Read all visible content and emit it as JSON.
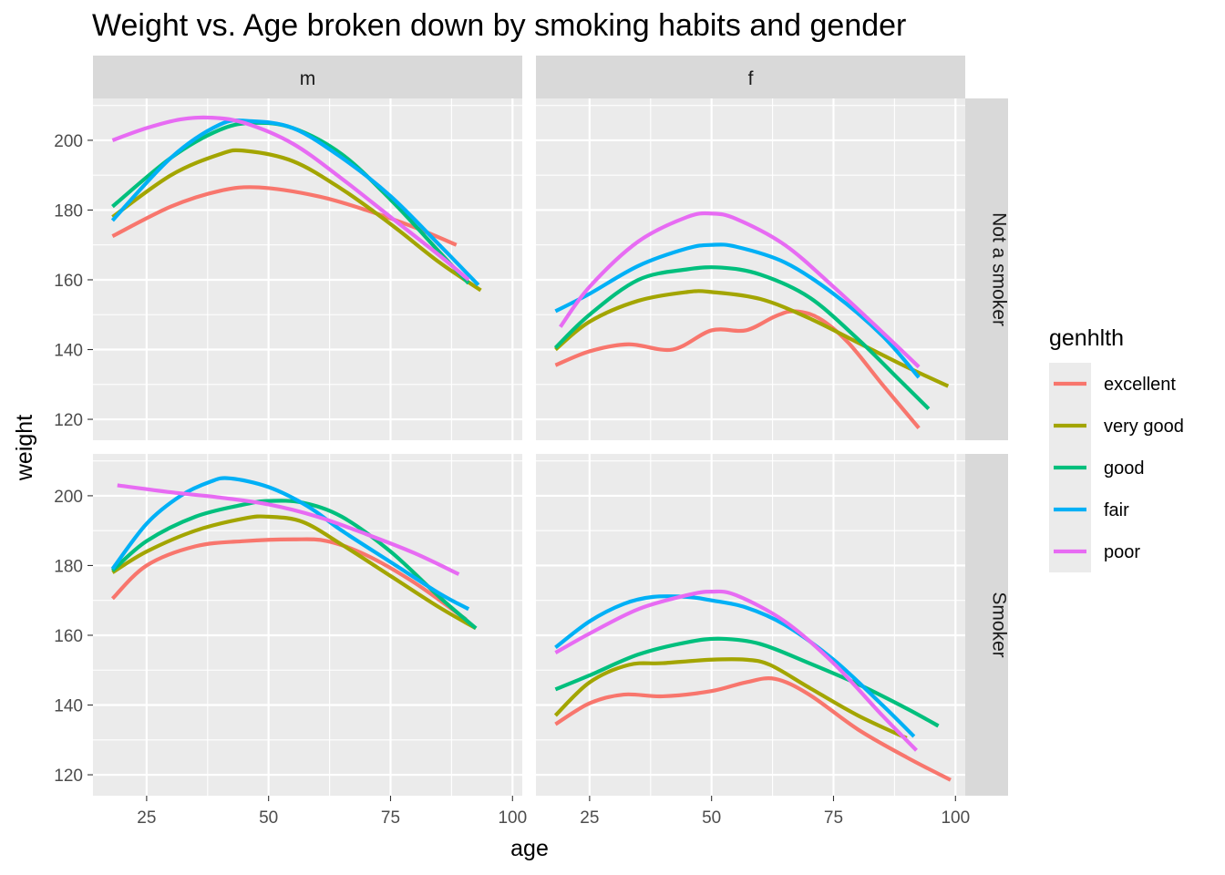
{
  "chart_data": {
    "type": "line",
    "title": "Weight vs. Age broken down by smoking habits and gender",
    "xlabel": "age",
    "ylabel": "weight",
    "xlim": [
      14,
      102
    ],
    "ylim": [
      114,
      212
    ],
    "x_ticks": [
      25,
      50,
      75,
      100
    ],
    "y_ticks": [
      120,
      140,
      160,
      180,
      200
    ],
    "grid": true,
    "facet_columns": [
      "m",
      "f"
    ],
    "facet_rows": [
      "Not a smoker",
      "Smoker"
    ],
    "legend": {
      "title": "genhlth",
      "placement": "right",
      "entries": [
        {
          "name": "excellent",
          "color": "#F8766D"
        },
        {
          "name": "very good",
          "color": "#A3A500"
        },
        {
          "name": "good",
          "color": "#00BF7D"
        },
        {
          "name": "fair",
          "color": "#00B0F6"
        },
        {
          "name": "poor",
          "color": "#E76BF3"
        }
      ]
    },
    "panels": [
      {
        "col": "m",
        "row": "Not a smoker",
        "series": [
          {
            "name": "excellent",
            "x": [
              18,
              30,
              40,
              48,
              60,
              70,
              80,
              88.5
            ],
            "y": [
              172.5,
              181,
              185.5,
              186.5,
              184,
              180,
              175,
              170
            ]
          },
          {
            "name": "very good",
            "x": [
              18,
              30,
              40,
              45,
              55,
              65,
              75,
              85,
              93.5
            ],
            "y": [
              178,
              190,
              196,
              197,
              194,
              186,
              176,
              165,
              157
            ]
          },
          {
            "name": "good",
            "x": [
              18,
              30,
              40,
              47,
              55,
              65,
              75,
              85,
              91
            ],
            "y": [
              181,
              195,
              203,
              205,
              203.5,
              196,
              183,
              168,
              159
            ]
          },
          {
            "name": "fair",
            "x": [
              18,
              30,
              40,
              46,
              55,
              65,
              75,
              85,
              93
            ],
            "y": [
              177,
              195,
              204.5,
              205.5,
              203.5,
              195,
              184,
              170,
              158.5
            ]
          },
          {
            "name": "poor",
            "x": [
              18,
              25,
              32,
              38,
              45,
              55,
              65,
              75,
              85,
              91
            ],
            "y": [
              200,
              203.5,
              206,
              206.5,
              205,
              199,
              189,
              178,
              167,
              160
            ]
          }
        ]
      },
      {
        "col": "f",
        "row": "Not a smoker",
        "series": [
          {
            "name": "excellent",
            "x": [
              18,
              25,
              33,
              42,
              50,
              57,
              63,
              67,
              72,
              78,
              85,
              92.5
            ],
            "y": [
              135.5,
              139.5,
              141.5,
              140,
              145.5,
              145.5,
              149.5,
              151,
              149,
              142,
              130,
              117.5
            ]
          },
          {
            "name": "very good",
            "x": [
              18,
              25,
              35,
              45,
              50,
              60,
              70,
              80,
              90,
              98.5
            ],
            "y": [
              140,
              148,
              154,
              156.5,
              156.5,
              154.5,
              149,
              142,
              135,
              129.5
            ]
          },
          {
            "name": "good",
            "x": [
              18,
              25,
              35,
              45,
              52,
              60,
              70,
              80,
              88,
              94.5
            ],
            "y": [
              140.5,
              150,
              160,
              163,
              163.5,
              161.5,
              155,
              143,
              132,
              123
            ]
          },
          {
            "name": "fair",
            "x": [
              18,
              25,
              35,
              45,
              50,
              55,
              65,
              75,
              85,
              92.5
            ],
            "y": [
              151,
              156,
              164,
              169,
              170,
              169.5,
              165,
              156,
              144,
              132
            ]
          },
          {
            "name": "poor",
            "x": [
              19,
              25,
              35,
              45,
              50,
              55,
              65,
              75,
              85,
              92.5
            ],
            "y": [
              146.5,
              158,
              171,
              178,
              179,
              177.5,
              170,
              158,
              145,
              135
            ]
          }
        ]
      },
      {
        "col": "m",
        "row": "Smoker",
        "series": [
          {
            "name": "excellent",
            "x": [
              18,
              25,
              35,
              45,
              55,
              62,
              70,
              80,
              90.5
            ],
            "y": [
              170.5,
              180,
              185.5,
              187,
              187.5,
              187,
              183,
              175,
              164.5
            ]
          },
          {
            "name": "very good",
            "x": [
              18,
              25,
              35,
              45,
              50,
              57,
              65,
              75,
              85,
              92.5
            ],
            "y": [
              178,
              184,
              190,
              193.5,
              194,
              192.5,
              186,
              177,
              168,
              162
            ]
          },
          {
            "name": "good",
            "x": [
              18,
              25,
              35,
              45,
              50,
              57,
              65,
              75,
              85,
              92.5
            ],
            "y": [
              178.5,
              187,
              194,
              197.5,
              198.5,
              198,
              194,
              184,
              171,
              162
            ]
          },
          {
            "name": "fair",
            "x": [
              18,
              25,
              32,
              38,
              42,
              50,
              58,
              65,
              75,
              85,
              91
            ],
            "y": [
              179,
              192,
              200,
              204,
              205,
              202.5,
              197,
              190,
              181,
              172,
              167.5
            ]
          },
          {
            "name": "poor",
            "x": [
              19,
              30,
              40,
              50,
              60,
              70,
              80,
              89
            ],
            "y": [
              203,
              201,
              199.5,
              197.5,
              194,
              189,
              183.5,
              177.5
            ]
          }
        ]
      },
      {
        "col": "f",
        "row": "Smoker",
        "series": [
          {
            "name": "excellent",
            "x": [
              18,
              25,
              32,
              40,
              50,
              57,
              63,
              70,
              80,
              90,
              99
            ],
            "y": [
              134.5,
              140.5,
              143,
              142.5,
              144,
              146.5,
              147.5,
              143,
              133,
              125,
              118.5
            ]
          },
          {
            "name": "very good",
            "x": [
              18,
              25,
              33,
              40,
              50,
              57,
              62,
              70,
              80,
              90
            ],
            "y": [
              137,
              146.5,
              151.5,
              152,
              153,
              153,
              151.5,
              145,
              137,
              130.5
            ]
          },
          {
            "name": "good",
            "x": [
              18,
              25,
              35,
              45,
              52,
              60,
              70,
              80,
              90,
              96.5
            ],
            "y": [
              144.5,
              148.5,
              154.5,
              158,
              159,
              157.5,
              152,
              146,
              139,
              134
            ]
          },
          {
            "name": "fair",
            "x": [
              18,
              25,
              32,
              38,
              45,
              50,
              57,
              65,
              75,
              85,
              91.5
            ],
            "y": [
              156.5,
              164,
              169,
              171,
              171,
              170,
              168,
              163,
              153,
              140,
              131
            ]
          },
          {
            "name": "poor",
            "x": [
              18,
              25,
              35,
              45,
              50,
              55,
              65,
              75,
              85,
              92
            ],
            "y": [
              155,
              160.5,
              167.5,
              171.5,
              172.5,
              171.5,
              164,
              152,
              137,
              127
            ]
          }
        ]
      }
    ]
  }
}
